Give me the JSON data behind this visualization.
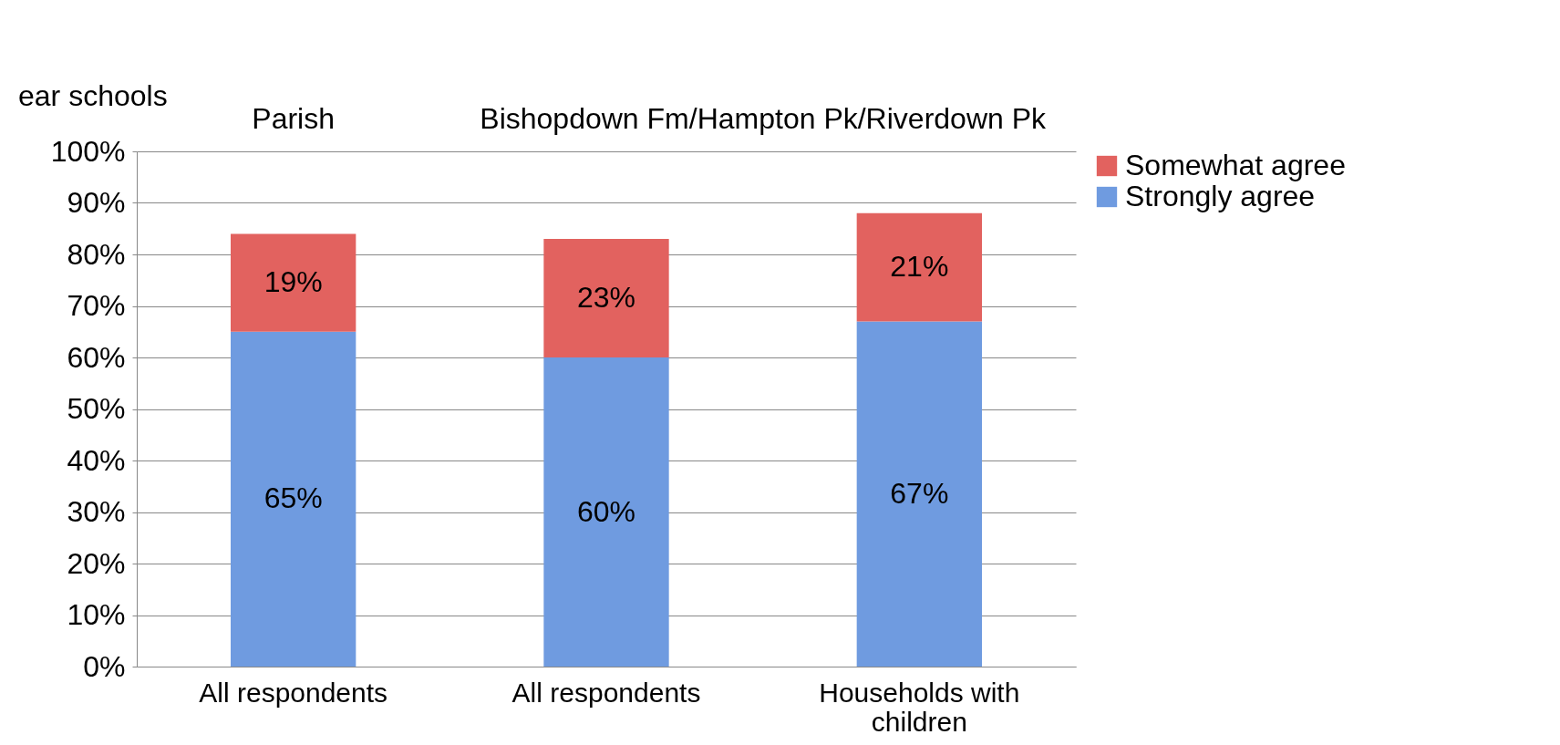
{
  "chart_data": {
    "type": "bar",
    "stacked": true,
    "categories": [
      "All respondents",
      "All respondents",
      "Households with children"
    ],
    "series": [
      {
        "name": "Strongly agree",
        "color": "#6f9be0",
        "values": [
          65,
          60,
          67
        ],
        "value_labels": [
          "65%",
          "60%",
          "67%"
        ]
      },
      {
        "name": "Somewhat agree",
        "color": "#e2625f",
        "values": [
          19,
          23,
          21
        ],
        "value_labels": [
          "19%",
          "23%",
          "21%"
        ]
      }
    ],
    "ylim": [
      0,
      100
    ],
    "yticks": [
      {
        "value": 0,
        "label": "0%"
      },
      {
        "value": 10,
        "label": "10%"
      },
      {
        "value": 20,
        "label": "20%"
      },
      {
        "value": 30,
        "label": "30%"
      },
      {
        "value": 40,
        "label": "40%"
      },
      {
        "value": 50,
        "label": "50%"
      },
      {
        "value": 60,
        "label": "60%"
      },
      {
        "value": 70,
        "label": "70%"
      },
      {
        "value": 80,
        "label": "80%"
      },
      {
        "value": 90,
        "label": "90%"
      },
      {
        "value": 100,
        "label": "100%"
      }
    ],
    "grid": "y",
    "legend": "right",
    "annotations": [
      "ear schools",
      "Parish",
      "Bishopdown Fm/Hampton Pk/Riverdown Pk"
    ]
  }
}
